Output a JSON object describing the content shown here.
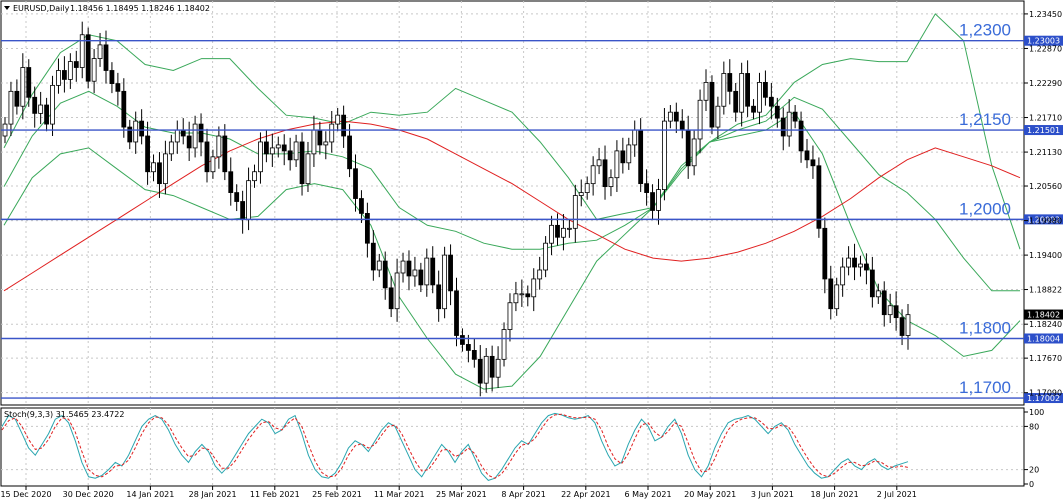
{
  "chart_data": {
    "type": "candlestick",
    "title": "EURUSD,Daily",
    "ohlc_header": "1.18456 1.18495 1.18246 1.18402",
    "ylim": [
      1.169,
      1.2365
    ],
    "y_ticks": [
      "1.23450",
      "1.22870",
      "1.22290",
      "1.21710",
      "1.21130",
      "1.20560",
      "1.19980",
      "1.19400",
      "1.18822",
      "1.18240",
      "1.17670",
      "1.17090"
    ],
    "x_ticks": [
      "15 Dec 2020",
      "30 Dec 2020",
      "14 Jan 2021",
      "28 Jan 2021",
      "11 Feb 2021",
      "25 Feb 2021",
      "11 Mar 2021",
      "25 Mar 2021",
      "8 Apr 2021",
      "22 Apr 2021",
      "6 May 2021",
      "20 May 2021",
      "3 Jun 2021",
      "18 Jun 2021",
      "2 Jul 2021"
    ],
    "levels": [
      {
        "value": 1.23,
        "label": "1,2300",
        "price_label": "1.23003"
      },
      {
        "value": 1.215,
        "label": "1,2150",
        "price_label": "1.21501"
      },
      {
        "value": 1.2,
        "label": "1,2000",
        "price_label": "1.20002"
      },
      {
        "value": 1.18,
        "label": "1,1800",
        "price_label": "1.18004"
      },
      {
        "value": 1.17,
        "label": "1,1700",
        "price_label": "1.17002"
      }
    ],
    "current_price": {
      "value": 1.18402,
      "label": "1.18402"
    },
    "closes": [
      1.216,
      1.2215,
      1.219,
      1.2255,
      1.2205,
      1.2178,
      1.2192,
      1.216,
      1.2225,
      1.225,
      1.2235,
      1.2265,
      1.2255,
      1.231,
      1.2232,
      1.227,
      1.2293,
      1.225,
      1.2228,
      1.2215,
      1.2155,
      1.213,
      1.2165,
      1.214,
      1.208,
      1.2095,
      1.206,
      1.211,
      1.213,
      1.215,
      1.214,
      1.212,
      1.216,
      1.213,
      1.208,
      1.2105,
      1.214,
      1.208,
      1.2045,
      1.203,
      1.2,
      1.2065,
      1.208,
      1.213,
      1.211,
      1.212,
      1.2125,
      1.2115,
      1.21,
      1.213,
      1.206,
      1.211,
      1.215,
      1.2125,
      1.213,
      1.216,
      1.2175,
      1.214,
      1.2085,
      1.2035,
      1.201,
      1.196,
      1.1915,
      1.193,
      1.1885,
      1.185,
      1.191,
      1.193,
      1.1905,
      1.1915,
      1.189,
      1.1935,
      1.189,
      1.185,
      1.194,
      1.188,
      1.1805,
      1.179,
      1.178,
      1.1765,
      1.1725,
      1.177,
      1.1735,
      1.1765,
      1.1815,
      1.186,
      1.1875,
      1.1875,
      1.187,
      1.19,
      1.1915,
      1.196,
      1.199,
      1.197,
      1.1985,
      1.1985,
      1.204,
      1.2045,
      1.206,
      1.209,
      1.21,
      1.2055,
      1.207,
      1.2115,
      1.2095,
      1.2125,
      1.215,
      1.206,
      1.2045,
      1.2015,
      1.205,
      1.2165,
      1.218,
      1.2165,
      1.215,
      1.209,
      1.2135,
      1.22,
      1.223,
      1.2155,
      1.219,
      1.2245,
      1.2215,
      1.218,
      1.2245,
      1.219,
      1.218,
      1.223,
      1.2205,
      1.219,
      1.217,
      1.214,
      1.218,
      1.2165,
      1.2115,
      1.21,
      1.209,
      1.1985,
      1.19,
      1.185,
      1.189,
      1.192,
      1.1935,
      1.192,
      1.1925,
      1.1915,
      1.187,
      1.188,
      1.184,
      1.1855,
      1.1835,
      1.1805,
      1.184
    ],
    "ma_red": [
      1.188,
      1.191,
      1.194,
      1.197,
      1.2,
      1.203,
      1.206,
      1.209,
      1.2115,
      1.2135,
      1.215,
      1.216,
      1.2165,
      1.216,
      1.215,
      1.2135,
      1.211,
      1.2085,
      1.206,
      1.203,
      1.2,
      1.1975,
      1.195,
      1.1935,
      1.193,
      1.1935,
      1.1945,
      1.196,
      1.198,
      1.2005,
      1.2035,
      1.207,
      1.21,
      1.212,
      1.2105,
      1.209,
      1.207
    ],
    "bb_upper": [
      1.212,
      1.221,
      1.228,
      1.231,
      1.23,
      1.226,
      1.225,
      1.227,
      1.227,
      1.222,
      1.2175,
      1.217,
      1.216,
      1.218,
      1.2175,
      1.218,
      1.222,
      1.22,
      1.218,
      1.213,
      1.207,
      1.2,
      1.201,
      1.202,
      1.209,
      1.213,
      1.216,
      1.2175,
      1.223,
      1.226,
      1.227,
      1.2265,
      1.2265,
      1.2345,
      1.23,
      1.209,
      1.195
    ],
    "bb_lower": [
      1.199,
      1.207,
      1.211,
      1.212,
      1.2085,
      1.205,
      1.204,
      1.202,
      1.2,
      1.2005,
      1.205,
      1.206,
      1.205,
      1.199,
      1.187,
      1.18,
      1.174,
      1.1715,
      1.172,
      1.177,
      1.185,
      1.193,
      1.1975,
      1.202,
      1.208,
      1.213,
      1.214,
      1.215,
      1.218,
      1.211,
      1.199,
      1.188,
      1.183,
      1.1805,
      1.177,
      1.178,
      1.183
    ],
    "bb_middle": [
      1.2055,
      1.214,
      1.2195,
      1.2215,
      1.219,
      1.2155,
      1.2145,
      1.2145,
      1.2135,
      1.211,
      1.211,
      1.2115,
      1.2105,
      1.2085,
      1.202,
      1.199,
      1.198,
      1.196,
      1.195,
      1.195,
      1.196,
      1.1965,
      1.199,
      1.202,
      1.2085,
      1.213,
      1.215,
      1.2165,
      1.2205,
      1.2185,
      1.213,
      1.2075,
      1.2045,
      1.2,
      1.1935,
      1.188,
      1.188
    ],
    "stochastic": {
      "label": "Stoch(9,3,3) 31.5465 23.4722",
      "ylim": [
        0,
        100
      ],
      "y_ticks": [
        "100",
        "80",
        "20",
        "0"
      ],
      "levels": [
        80,
        20
      ],
      "main": [
        80,
        95,
        90,
        70,
        50,
        40,
        55,
        70,
        90,
        95,
        85,
        60,
        30,
        10,
        8,
        12,
        20,
        30,
        25,
        40,
        60,
        80,
        90,
        95,
        90,
        75,
        55,
        40,
        30,
        45,
        55,
        45,
        25,
        15,
        25,
        40,
        55,
        70,
        80,
        90,
        85,
        70,
        75,
        90,
        95,
        70,
        40,
        20,
        10,
        8,
        15,
        30,
        50,
        60,
        55,
        45,
        60,
        75,
        85,
        80,
        60,
        40,
        20,
        10,
        25,
        40,
        55,
        45,
        30,
        45,
        55,
        35,
        15,
        5,
        8,
        20,
        35,
        50,
        60,
        55,
        70,
        85,
        95,
        98,
        96,
        92,
        90,
        92,
        95,
        85,
        60,
        40,
        25,
        30,
        55,
        75,
        90,
        80,
        60,
        65,
        80,
        90,
        70,
        40,
        20,
        10,
        25,
        50,
        70,
        85,
        90,
        92,
        95,
        90,
        80,
        70,
        80,
        85,
        75,
        55,
        40,
        25,
        15,
        8,
        10,
        20,
        30,
        35,
        25,
        20,
        30,
        35,
        25,
        20,
        25,
        28,
        31
      ],
      "signal": [
        75,
        88,
        92,
        80,
        62,
        48,
        50,
        62,
        80,
        92,
        90,
        72,
        45,
        20,
        12,
        10,
        16,
        25,
        26,
        33,
        50,
        70,
        85,
        93,
        92,
        82,
        65,
        50,
        38,
        40,
        50,
        48,
        35,
        22,
        22,
        32,
        47,
        62,
        74,
        85,
        87,
        78,
        75,
        85,
        92,
        80,
        55,
        32,
        16,
        10,
        11,
        22,
        40,
        53,
        56,
        50,
        55,
        68,
        80,
        82,
        70,
        50,
        32,
        18,
        20,
        32,
        47,
        48,
        38,
        42,
        50,
        42,
        25,
        12,
        8,
        14,
        27,
        42,
        54,
        56,
        63,
        77,
        90,
        96,
        97,
        94,
        92,
        92,
        93,
        90,
        75,
        52,
        35,
        28,
        42,
        63,
        82,
        85,
        72,
        65,
        73,
        85,
        80,
        57,
        33,
        17,
        18,
        35,
        57,
        75,
        85,
        90,
        92,
        92,
        86,
        77,
        77,
        82,
        80,
        67,
        50,
        35,
        22,
        13,
        10,
        15,
        23,
        30,
        30,
        25,
        27,
        32,
        30,
        24,
        23,
        25,
        23
      ]
    }
  }
}
